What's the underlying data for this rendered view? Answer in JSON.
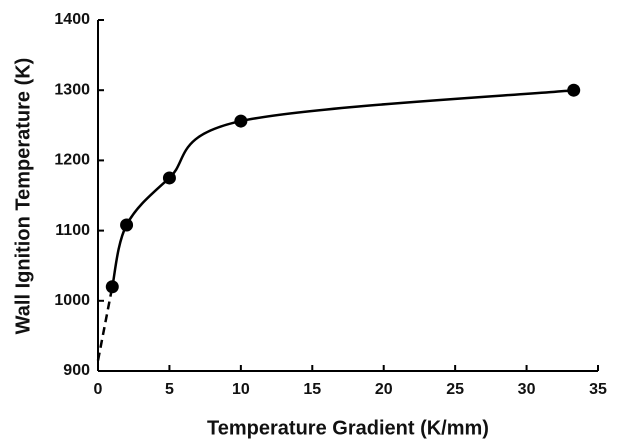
{
  "chart_data": {
    "type": "line",
    "xlabel": "Temperature Gradient (K/mm)",
    "ylabel": "Wall Ignition Temperature (K)",
    "xlim": [
      0,
      35
    ],
    "xticks": [
      0,
      5,
      10,
      15,
      20,
      25,
      30,
      35
    ],
    "ylim": [
      900,
      1400
    ],
    "yticks": [
      900,
      1000,
      1100,
      1200,
      1300,
      1400
    ],
    "grid": false,
    "series": [
      {
        "color": "#000000",
        "x": [
          1,
          2,
          5,
          10,
          33.3
        ],
        "values": [
          1020,
          1108,
          1175,
          1256,
          1300
        ],
        "smooth": true,
        "markers": true,
        "dashed": false
      },
      {
        "color": "#000000",
        "x": [
          0,
          1
        ],
        "values": [
          915,
          1020
        ],
        "smooth": false,
        "markers": false,
        "dashed": true
      }
    ]
  }
}
